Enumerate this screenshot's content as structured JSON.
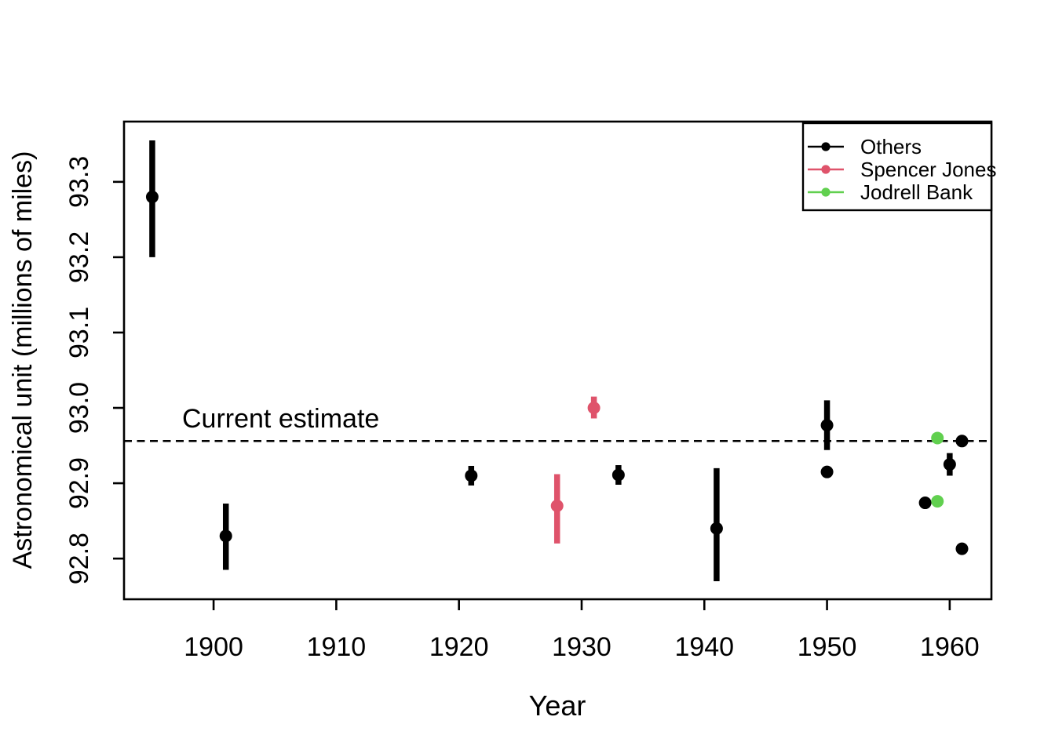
{
  "figure": {
    "background": "#ffffff",
    "xlabel": "Year",
    "ylabel": "Astronomical unit (millions of miles)",
    "annotation": "Current estimate"
  },
  "legend": {
    "position": "top-right",
    "items": [
      {
        "label": "Others",
        "color": "#000000"
      },
      {
        "label": "Spencer Jones",
        "color": "#DF536B"
      },
      {
        "label": "Jodrell Bank",
        "color": "#61D04F"
      }
    ]
  },
  "chart_data": {
    "type": "scatter",
    "title": "",
    "xlabel": "Year",
    "ylabel": "Astronomical unit (millions of miles)",
    "xlim": [
      1892.7,
      1963.4
    ],
    "ylim": [
      92.746,
      93.38
    ],
    "xticks": [
      1900,
      1910,
      1920,
      1930,
      1940,
      1950,
      1960
    ],
    "yticks": [
      92.8,
      92.9,
      93.0,
      93.1,
      93.2,
      93.3
    ],
    "ytick_labels": [
      "92.8",
      "92.9",
      "93.0",
      "93.1",
      "93.2",
      "93.3"
    ],
    "grid": false,
    "legend_position": "top-right",
    "reference_line": {
      "label": "Current estimate",
      "value": 92.956,
      "style": "dashed"
    },
    "series": [
      {
        "name": "Others",
        "color": "#000000",
        "points": [
          {
            "year": 1895,
            "value": 93.28,
            "lo": 93.2,
            "hi": 93.355
          },
          {
            "year": 1901,
            "value": 92.83,
            "lo": 92.785,
            "hi": 92.873
          },
          {
            "year": 1921,
            "value": 92.91,
            "lo": 92.897,
            "hi": 92.923
          },
          {
            "year": 1933,
            "value": 92.911,
            "lo": 92.898,
            "hi": 92.924
          },
          {
            "year": 1941,
            "value": 92.84,
            "lo": 92.77,
            "hi": 92.92
          },
          {
            "year": 1950,
            "value": 92.977,
            "lo": 92.944,
            "hi": 93.01
          },
          {
            "year": 1950,
            "value": 92.915
          },
          {
            "year": 1958,
            "value": 92.874
          },
          {
            "year": 1960,
            "value": 92.925,
            "lo": 92.91,
            "hi": 92.94
          },
          {
            "year": 1961,
            "value": 92.956
          },
          {
            "year": 1961,
            "value": 92.813
          }
        ]
      },
      {
        "name": "Spencer Jones",
        "color": "#DF536B",
        "points": [
          {
            "year": 1928,
            "value": 92.87,
            "lo": 92.82,
            "hi": 92.912
          },
          {
            "year": 1931,
            "value": 93.0,
            "lo": 92.986,
            "hi": 93.015
          }
        ]
      },
      {
        "name": "Jodrell Bank",
        "color": "#61D04F",
        "points": [
          {
            "year": 1959,
            "value": 92.876
          },
          {
            "year": 1959,
            "value": 92.96
          }
        ]
      }
    ]
  }
}
